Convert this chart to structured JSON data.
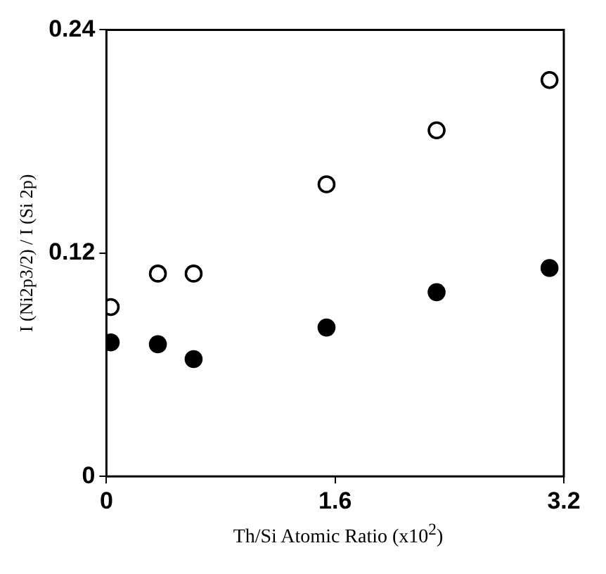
{
  "chart_data": {
    "type": "scatter",
    "xlabel": "Th/Si Atomic Ratio (x10$^{2}$)",
    "ylabel": "I (Ni2p3/2) / I (Si 2p)",
    "xlim": [
      0,
      3.2
    ],
    "xticks": [
      0,
      1.6,
      3.2
    ],
    "ylim": [
      0,
      0.24
    ],
    "yticks": [
      0,
      0.12,
      0.24
    ],
    "grid": false,
    "legend": false,
    "marker": "circle",
    "series": [
      {
        "color": "#000000",
        "x": [
          0.03,
          0.36,
          0.61,
          1.54,
          2.31,
          3.1
        ],
        "values": [
          0.091,
          0.109,
          0.109,
          0.157,
          0.186,
          0.213
        ]
      },
      {
        "color": "#000000",
        "x": [
          0.03,
          0.36,
          0.61,
          1.54,
          2.31,
          3.1
        ],
        "values": [
          0.072,
          0.071,
          0.063,
          0.08,
          0.099,
          0.112
        ]
      }
    ]
  }
}
